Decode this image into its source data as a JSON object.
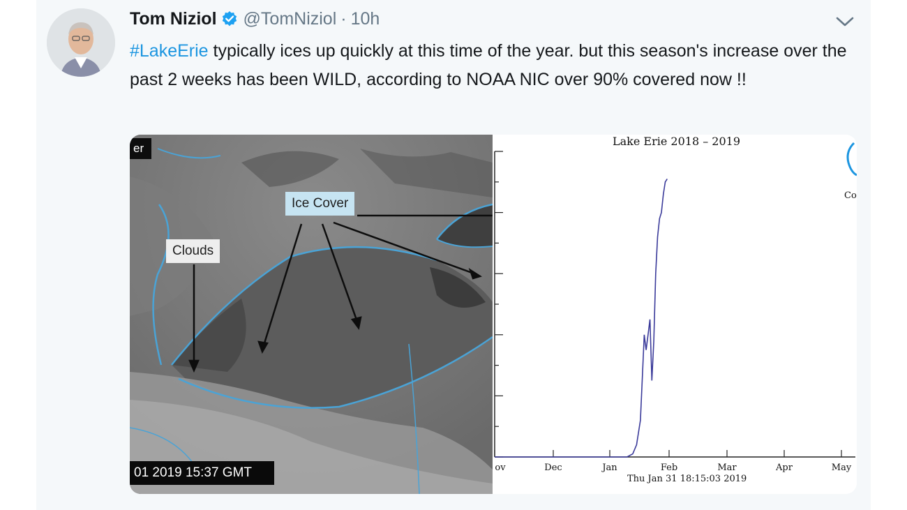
{
  "tweet": {
    "display_name": "Tom Niziol",
    "handle": "@TomNiziol",
    "separator": "·",
    "time": "10h",
    "hashtag": "#LakeErie",
    "body": " typically ices up quickly at this time of the year. but this season's increase over the past 2 weeks has been WILD, according to NOAA NIC over 90% covered now !!"
  },
  "icons": {
    "verified": "verified-badge-icon",
    "caret": "chevron-down-icon",
    "avatar": "profile-photo"
  },
  "colors": {
    "link": "#1b95e0",
    "verified": "#1da1f2",
    "text": "#14171a",
    "muted": "#657786",
    "shoreline": "#4aa3d6",
    "chart_line": "#3a3a9a"
  },
  "media": {
    "satellite": {
      "corner_label": "er",
      "timestamp": "01 2019 15:37 GMT",
      "label_ice": "Ice Cover",
      "label_clouds": "Clouds"
    },
    "chart": {
      "title": "Lake Erie   2018 – 2019",
      "date_stamp": "Thu Jan 31 18:15:03 2019",
      "logo_fragment": "Co",
      "tick_labels": [
        "ov",
        "Dec",
        "Jan",
        "Feb",
        "Mar",
        "Apr",
        "May"
      ]
    }
  },
  "chart_data": {
    "type": "line",
    "title": "Lake Erie   2018 – 2019",
    "xlabel": "",
    "ylabel": "",
    "x_categories": [
      "ov",
      "Dec",
      "Jan",
      "Feb",
      "Mar",
      "Apr",
      "May"
    ],
    "ylim": [
      0,
      100
    ],
    "grid": false,
    "series": [
      {
        "x": [
          "2018-11-01",
          "2018-12-15",
          "2019-01-10",
          "2019-01-13",
          "2019-01-15",
          "2019-01-17",
          "2019-01-19",
          "2019-01-20",
          "2019-01-22",
          "2019-01-23",
          "2019-01-24",
          "2019-01-25",
          "2019-01-26",
          "2019-01-27",
          "2019-01-28",
          "2019-01-29",
          "2019-01-30",
          "2019-01-31"
        ],
        "y": [
          0,
          0,
          0,
          1,
          4,
          12,
          40,
          35,
          45,
          25,
          38,
          60,
          72,
          78,
          80,
          86,
          90,
          91
        ]
      }
    ]
  }
}
